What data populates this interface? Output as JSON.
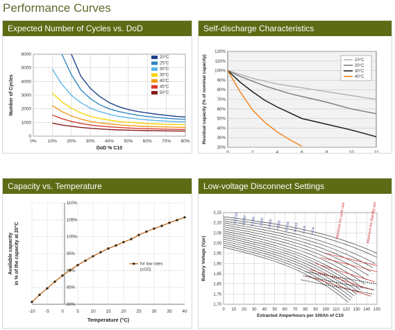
{
  "page": {
    "title": "Performance Curves"
  },
  "colors": {
    "header_bg": "#5d6b14",
    "title": "#5a6a2a"
  },
  "chart_data": [
    {
      "id": "cycles",
      "type": "line",
      "title": "Expected Number of Cycles vs. DoD",
      "xlabel": "DoD % C10",
      "ylabel": "Number of Cycles",
      "xlim": [
        0,
        80
      ],
      "ylim": [
        0,
        6000
      ],
      "xticks": [
        0,
        10,
        20,
        30,
        40,
        50,
        60,
        70,
        80
      ],
      "xtick_labels": [
        "0%",
        "10%",
        "20%",
        "30%",
        "40%",
        "50%",
        "60%",
        "70%",
        "80%"
      ],
      "yticks": [
        0,
        1000,
        2000,
        3000,
        4000,
        5000,
        6000
      ],
      "ytick_labels": [
        "0",
        "1000",
        "2000",
        "3000",
        "4000",
        "5000",
        "6000"
      ],
      "legend_position": "top-right",
      "x": [
        10,
        15,
        20,
        25,
        30,
        35,
        40,
        45,
        50,
        55,
        60,
        65,
        70,
        75,
        80
      ],
      "series": [
        {
          "name": "20°C",
          "color": "#1e3f8c",
          "values": [
            null,
            null,
            6000,
            4400,
            3500,
            2900,
            2450,
            2150,
            1950,
            1800,
            1700,
            1600,
            1520,
            1450,
            1400
          ]
        },
        {
          "name": "25°C",
          "color": "#2e86c1",
          "values": [
            null,
            6000,
            4500,
            3400,
            2750,
            2300,
            2000,
            1800,
            1650,
            1530,
            1440,
            1370,
            1310,
            1260,
            1230
          ]
        },
        {
          "name": "30°C",
          "color": "#5ab4e8",
          "values": [
            4900,
            3800,
            3000,
            2450,
            2050,
            1800,
            1600,
            1450,
            1340,
            1260,
            1190,
            1140,
            1100,
            1070,
            1050
          ]
        },
        {
          "name": "35°C",
          "color": "#f5d300",
          "values": [
            3150,
            2500,
            2050,
            1700,
            1450,
            1290,
            1170,
            1080,
            1010,
            960,
            920,
            890,
            870,
            850,
            830
          ]
        },
        {
          "name": "40°C",
          "color": "#f39a1e",
          "values": [
            2250,
            1800,
            1480,
            1250,
            1080,
            970,
            890,
            830,
            780,
            740,
            710,
            690,
            670,
            650,
            640
          ]
        },
        {
          "name": "45°C",
          "color": "#d63a2a",
          "values": [
            1550,
            1280,
            1080,
            930,
            820,
            740,
            680,
            640,
            600,
            570,
            550,
            530,
            515,
            500,
            490
          ]
        },
        {
          "name": "50°C",
          "color": "#8b1a1a",
          "values": [
            950,
            820,
            720,
            640,
            580,
            530,
            490,
            460,
            440,
            420,
            405,
            395,
            385,
            375,
            370
          ]
        }
      ]
    },
    {
      "id": "selfdischarge",
      "type": "line",
      "title": "Self-discharge Characteristics",
      "xlabel": "Storage time (months)",
      "ylabel": "Residual capacity (% of nominal capacity)",
      "xlim": [
        0,
        12
      ],
      "ylim": [
        20,
        120
      ],
      "xticks": [
        0,
        2,
        4,
        6,
        8,
        10,
        12
      ],
      "xtick_labels": [
        "0",
        "2",
        "4",
        "6",
        "8",
        "10",
        "12"
      ],
      "yticks": [
        20,
        30,
        40,
        50,
        60,
        70,
        80,
        90,
        100,
        110,
        120
      ],
      "ytick_labels": [
        "20%",
        "30%",
        "40%",
        "50%",
        "60%",
        "70%",
        "80%",
        "90%",
        "100%",
        "110%",
        "120%"
      ],
      "legend_position": "top-right",
      "series": [
        {
          "name": "10°C",
          "color": "#b5b5b5",
          "x": [
            0,
            1,
            2,
            3,
            4,
            5,
            6,
            8,
            10,
            12
          ],
          "values": [
            100,
            96,
            92,
            89,
            86,
            84,
            82,
            78,
            74,
            70
          ]
        },
        {
          "name": "20°C",
          "color": "#7f7f7f",
          "x": [
            0,
            1,
            2,
            3,
            4,
            5,
            6,
            8,
            10,
            12
          ],
          "values": [
            100,
            94,
            89,
            84,
            80,
            76,
            73,
            67,
            60,
            55
          ]
        },
        {
          "name": "30°C",
          "color": "#1a1a1a",
          "x": [
            0,
            1,
            2,
            3,
            4,
            5,
            6,
            8,
            10,
            12
          ],
          "values": [
            100,
            88,
            78,
            69,
            62,
            56,
            50,
            44,
            38,
            31
          ]
        },
        {
          "name": "40°C",
          "color": "#f0841f",
          "x": [
            0,
            1,
            2,
            3,
            4,
            5,
            6
          ],
          "values": [
            100,
            78,
            59,
            46,
            36,
            28,
            21
          ]
        }
      ]
    },
    {
      "id": "captemp",
      "type": "line",
      "title": "Capacity vs. Temperature",
      "xlabel": "Temperature (°C)",
      "ylabel": "Available capacity in % of the capacity at 20°C",
      "xlim": [
        -10,
        40
      ],
      "ylim": [
        80,
        110
      ],
      "xticks": [
        -10,
        -5,
        0,
        5,
        10,
        15,
        20,
        25,
        30,
        35,
        40
      ],
      "xtick_labels": [
        "-10",
        "-5",
        "0",
        "5",
        "10",
        "15",
        "20",
        "25",
        "30",
        "35",
        "40"
      ],
      "yticks": [
        80,
        85,
        90,
        95,
        100,
        105,
        110
      ],
      "ytick_labels": [
        "80%",
        "85%",
        "90%",
        "95%",
        "100%",
        "105%",
        "110%"
      ],
      "annotation": {
        "lines": [
          "for low rates",
          "(≤I10)"
        ]
      },
      "series": [
        {
          "name": "",
          "color": "#c07028",
          "x": [
            -10,
            -7.5,
            -5,
            -2.5,
            0,
            2.5,
            5,
            7.5,
            10,
            12.5,
            15,
            17.5,
            20,
            22.5,
            25,
            27.5,
            30,
            32.5,
            35,
            37.5,
            40
          ],
          "values": [
            80.7,
            82.8,
            84.7,
            86.7,
            88.5,
            90.1,
            91.6,
            92.9,
            94.2,
            95.4,
            96.5,
            97.4,
            98.4,
            99.3,
            100.5,
            101.5,
            102.4,
            103.2,
            104.1,
            104.9,
            105.7
          ]
        }
      ]
    },
    {
      "id": "lvd",
      "type": "line",
      "title": "Low-voltage Disconnect Settings",
      "xlabel": "Extracted Amperhours per 100Ah of C10",
      "ylabel": "Battery Voltage (Vpc)",
      "xlim": [
        0,
        150
      ],
      "ylim": [
        1.7,
        2.15
      ],
      "xticks": [
        0,
        10,
        20,
        30,
        40,
        50,
        60,
        70,
        80,
        90,
        100,
        110,
        120,
        130,
        140,
        150
      ],
      "xtick_labels": [
        "0",
        "10",
        "20",
        "30",
        "40",
        "50",
        "60",
        "70",
        "80",
        "90",
        "100",
        "110",
        "120",
        "130",
        "140",
        "150"
      ],
      "yticks": [
        1.7,
        1.75,
        1.8,
        1.85,
        1.9,
        1.95,
        2.0,
        2.05,
        2.1,
        2.15
      ],
      "ytick_labels": [
        "1,70",
        "1,75",
        "1,80",
        "1,85",
        "1,90",
        "1,95",
        "2,00",
        "2,05",
        "2,10",
        "2,15"
      ],
      "rate_labels": [
        "I=C/100",
        "I=C/50",
        "I=C/40",
        "I=C/30",
        "I=C/25",
        "I=C/20",
        "I=C/15",
        "I=C/10",
        "I=C/8",
        "I=C/6"
      ],
      "limit_labels": [
        "Maximum for cycle use",
        "Maximum for Standby use"
      ],
      "curves": [
        {
          "start": 2.13,
          "end_x": 150,
          "end": 1.95
        },
        {
          "start": 2.12,
          "end_x": 150,
          "end": 1.93
        },
        {
          "start": 2.11,
          "end_x": 148,
          "end": 1.9
        },
        {
          "start": 2.1,
          "end_x": 146,
          "end": 1.88
        },
        {
          "start": 2.09,
          "end_x": 144,
          "end": 1.86
        },
        {
          "start": 2.08,
          "end_x": 142,
          "end": 1.84
        },
        {
          "start": 2.07,
          "end_x": 140,
          "end": 1.82
        },
        {
          "start": 2.06,
          "end_x": 138,
          "end": 1.8
        },
        {
          "start": 2.05,
          "end_x": 136,
          "end": 1.78
        },
        {
          "start": 2.04,
          "end_x": 134,
          "end": 1.77
        },
        {
          "start": 2.03,
          "end_x": 132,
          "end": 1.76
        },
        {
          "start": 2.02,
          "end_x": 130,
          "end": 1.75
        },
        {
          "start": 2.01,
          "end_x": 128,
          "end": 1.74
        },
        {
          "start": 2.0,
          "end_x": 126,
          "end": 1.73
        },
        {
          "start": 1.99,
          "end_x": 124,
          "end": 1.72
        },
        {
          "start": 1.98,
          "end_x": 122,
          "end": 1.71
        }
      ]
    }
  ]
}
